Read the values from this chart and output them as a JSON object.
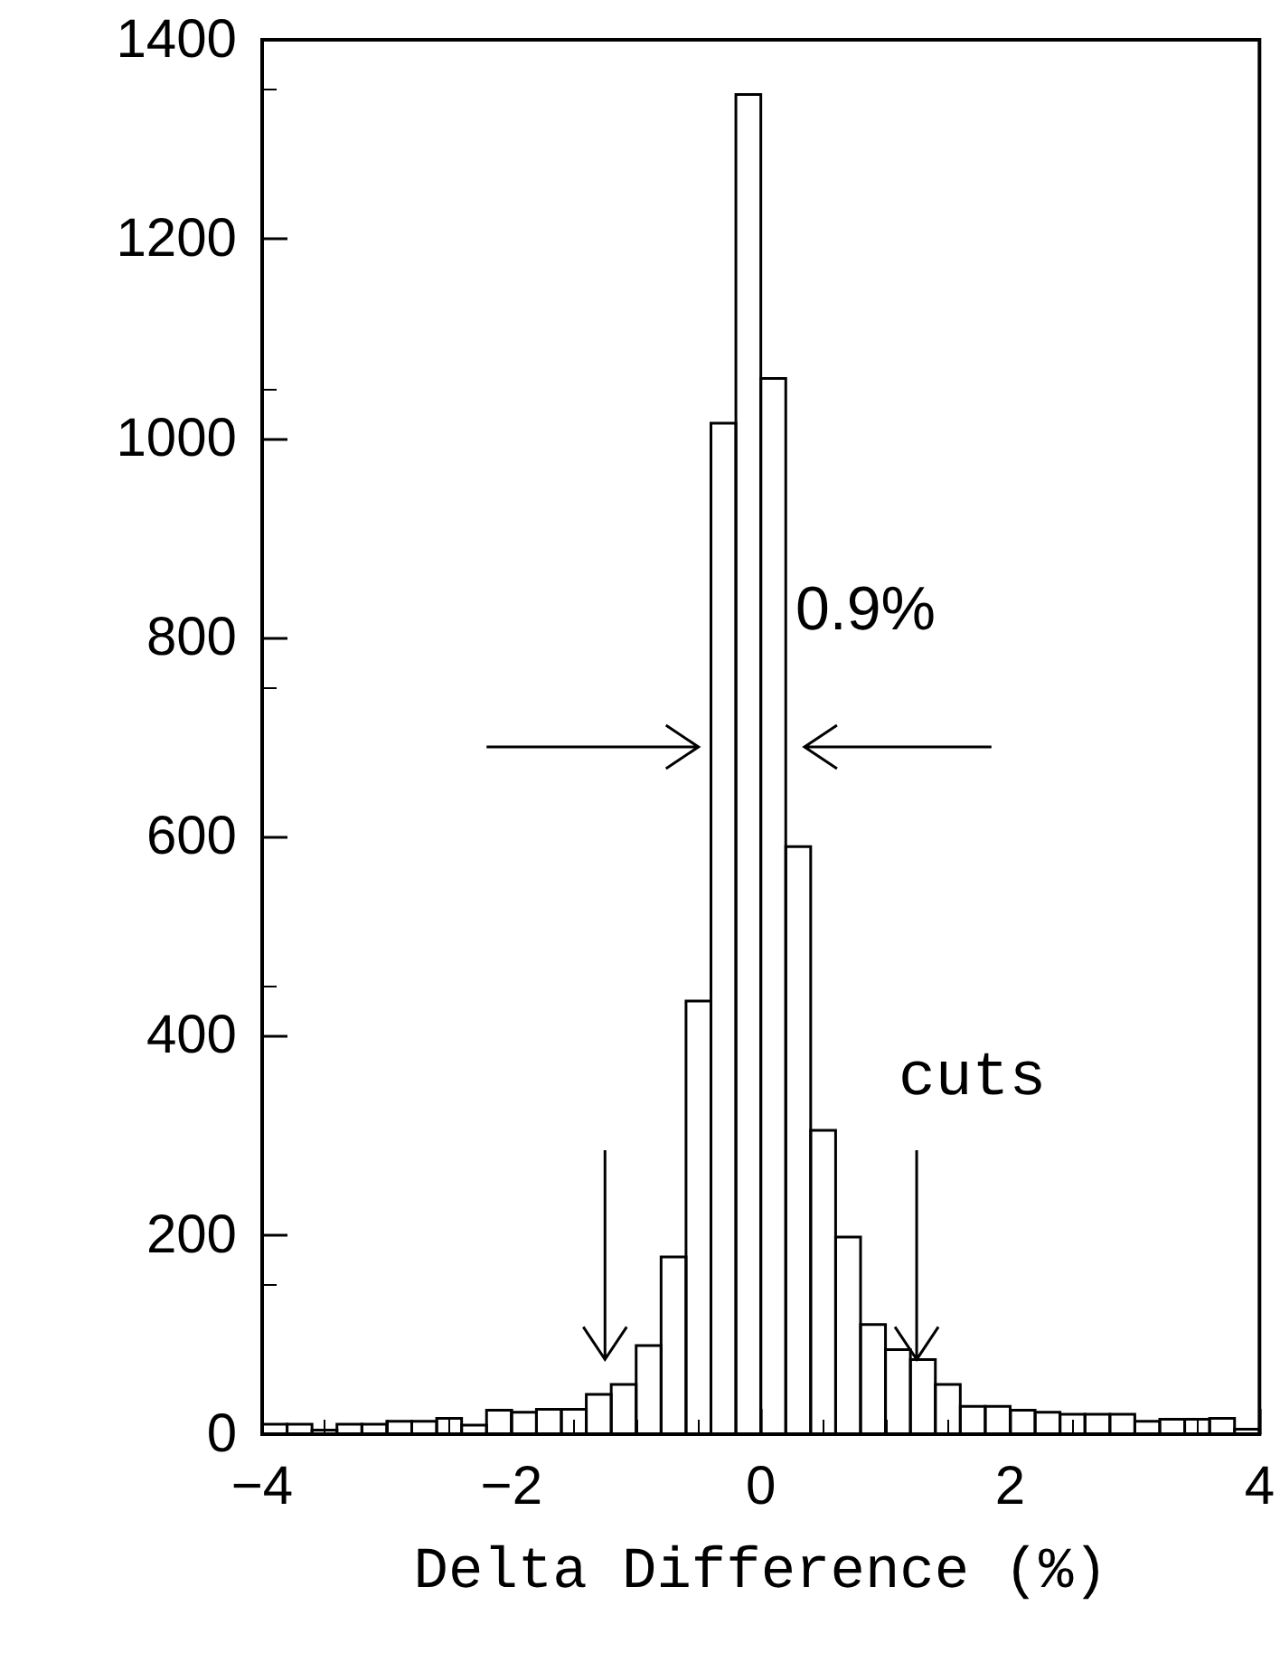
{
  "chart_data": {
    "type": "histogram",
    "xlabel": "Delta Difference (%)",
    "bins": [
      -4,
      -3.8,
      -3.6,
      -3.4,
      -3.2,
      -3,
      -2.8,
      -2.6,
      -2.4,
      -2.2,
      -2,
      -1.8,
      -1.6,
      -1.4,
      -1.2,
      -1,
      -0.8,
      -0.6,
      -0.4,
      -0.2,
      0,
      0.2,
      0.4,
      0.6,
      0.8,
      1,
      1.2,
      1.4,
      1.6,
      1.8,
      2,
      2.2,
      2.4,
      2.6,
      2.8,
      3,
      3.2,
      3.4,
      3.6,
      3.8,
      4
    ],
    "values": [
      10,
      10,
      4,
      10,
      10,
      13,
      13,
      16,
      9,
      24,
      22,
      25,
      25,
      40,
      50,
      89,
      178,
      435,
      1015,
      1345,
      1060,
      590,
      305,
      198,
      110,
      85,
      75,
      50,
      28,
      28,
      24,
      22,
      20,
      20,
      20,
      13,
      15,
      15,
      16,
      5
    ],
    "color": "#000000",
    "xlim": [
      -4,
      4
    ],
    "xticks": [
      {
        "value": -4,
        "label": "−4"
      },
      {
        "value": -2,
        "label": "−2"
      },
      0,
      2,
      4
    ],
    "ylim": [
      0,
      1400
    ],
    "yticks": [
      0,
      200,
      400,
      600,
      800,
      1000,
      1200,
      1400
    ],
    "grid": false,
    "annotations": [
      "0.9%",
      {
        "text": "cuts",
        "x": 1.25,
        "y": 75
      }
    ]
  }
}
